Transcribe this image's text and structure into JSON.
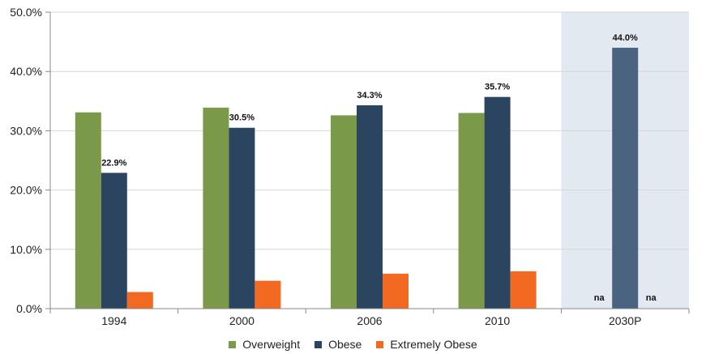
{
  "chart_data": {
    "type": "bar",
    "categories": [
      "1994",
      "2000",
      "2006",
      "2010",
      "2030P"
    ],
    "series": [
      {
        "name": "Overweight",
        "values": [
          33.1,
          33.9,
          32.6,
          33.0,
          null
        ],
        "color": "#7a9a4a"
      },
      {
        "name": "Obese",
        "values": [
          22.9,
          30.5,
          34.3,
          35.7,
          44.0
        ],
        "color": "#2b4560"
      },
      {
        "name": "Extremely Obese",
        "values": [
          2.8,
          4.7,
          5.9,
          6.3,
          null
        ],
        "color": "#f26a21"
      }
    ],
    "data_labels": {
      "Obese": [
        "22.9%",
        "30.5%",
        "34.3%",
        "35.7%",
        "44.0%"
      ],
      "na_text": "na"
    },
    "projection_highlight": {
      "category": "2030P",
      "background": "#e3e9f1",
      "bar_color": "#4a6380"
    },
    "y_ticks": [
      "0.0%",
      "10.0%",
      "20.0%",
      "30.0%",
      "40.0%",
      "50.0%"
    ],
    "ylim": [
      0,
      50
    ],
    "grid": true,
    "legend_position": "bottom",
    "title": "",
    "xlabel": "",
    "ylabel": ""
  }
}
